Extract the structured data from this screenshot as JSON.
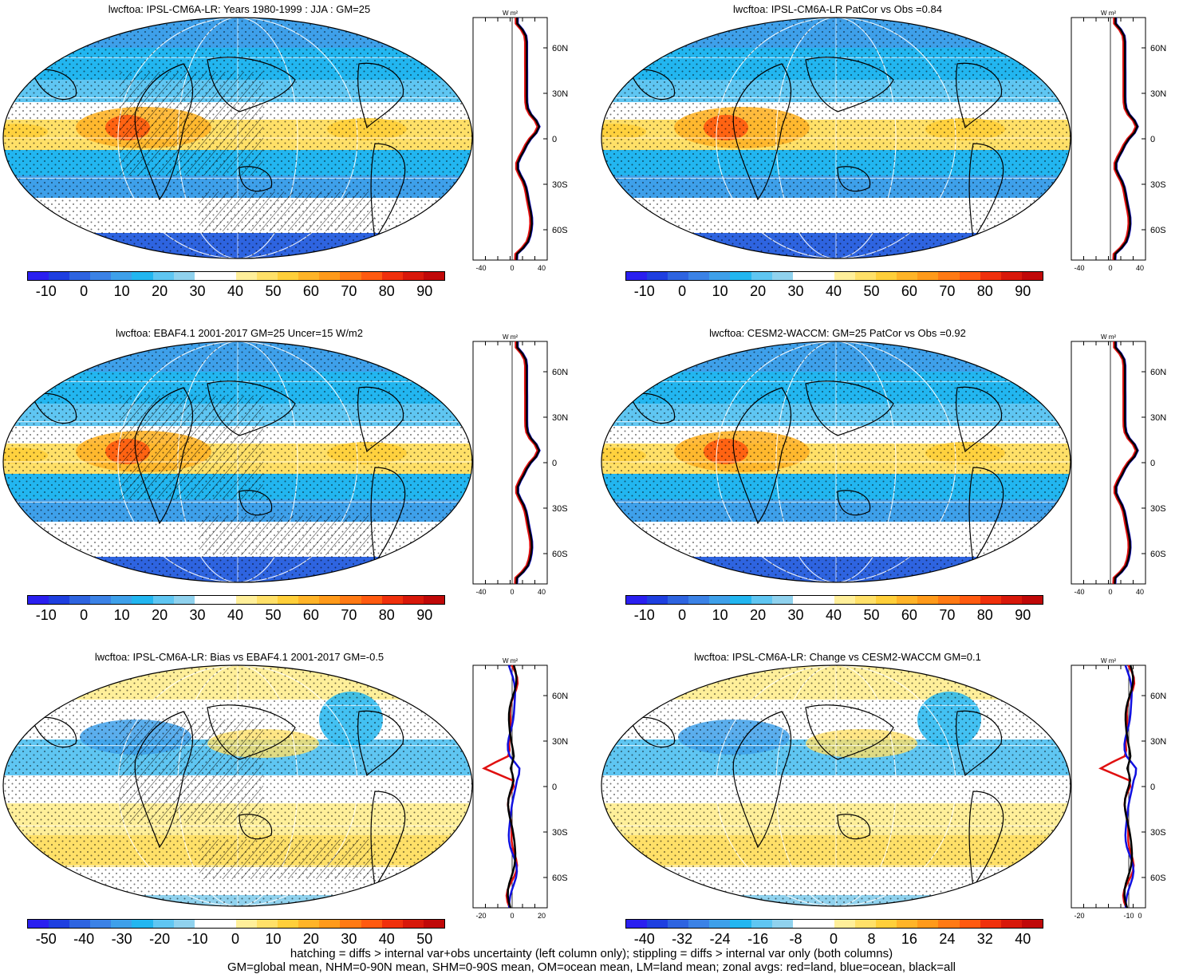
{
  "panels": [
    {
      "title": "lwcftoa: IPSL-CM6A-LR: Years 1980-1999 : JJA : GM=25",
      "kind": "field",
      "hatch": true,
      "colorbar_labels": [
        "-10",
        "0",
        "10",
        "20",
        "30",
        "40",
        "50",
        "60",
        "70",
        "80",
        "90"
      ],
      "zonal_x_ticks": [
        "-40",
        "0",
        "40"
      ],
      "zonal_unit": "W m²",
      "lat_ticks": [
        "60N",
        "30N",
        "0",
        "30S",
        "60S"
      ]
    },
    {
      "title": "lwcftoa: IPSL-CM6A-LR PatCor vs Obs =0.84",
      "kind": "field",
      "hatch": false,
      "colorbar_labels": [
        "-10",
        "0",
        "10",
        "20",
        "30",
        "40",
        "50",
        "60",
        "70",
        "80",
        "90"
      ],
      "zonal_x_ticks": [
        "-40",
        "0",
        "40"
      ],
      "zonal_unit": "W m²",
      "lat_ticks": [
        "60N",
        "30N",
        "0",
        "30S",
        "60S"
      ]
    },
    {
      "title": "lwcftoa: EBAF4.1 2001-2017 GM=25 Uncer=15 W/m2",
      "kind": "field",
      "hatch": true,
      "colorbar_labels": [
        "-10",
        "0",
        "10",
        "20",
        "30",
        "40",
        "50",
        "60",
        "70",
        "80",
        "90"
      ],
      "zonal_x_ticks": [
        "-40",
        "0",
        "40"
      ],
      "zonal_unit": "W m²",
      "lat_ticks": [
        "60N",
        "30N",
        "0",
        "30S",
        "60S"
      ]
    },
    {
      "title": "lwcftoa: CESM2-WACCM: GM=25 PatCor vs Obs =0.92",
      "kind": "field",
      "hatch": false,
      "colorbar_labels": [
        "-10",
        "0",
        "10",
        "20",
        "30",
        "40",
        "50",
        "60",
        "70",
        "80",
        "90"
      ],
      "zonal_x_ticks": [
        "-40",
        "0",
        "40"
      ],
      "zonal_unit": "W m²",
      "lat_ticks": [
        "60N",
        "30N",
        "0",
        "30S",
        "60S"
      ]
    },
    {
      "title": "lwcftoa: IPSL-CM6A-LR: Bias vs EBAF4.1 2001-2017 GM=-0.5",
      "kind": "diff",
      "hatch": true,
      "colorbar_labels": [
        "-50",
        "-40",
        "-30",
        "-20",
        "-10",
        "0",
        "10",
        "20",
        "30",
        "40",
        "50"
      ],
      "zonal_x_ticks": [
        "-20",
        "0",
        "20"
      ],
      "zonal_unit": "W m²",
      "lat_ticks": [
        "60N",
        "30N",
        "0",
        "30S",
        "60S"
      ]
    },
    {
      "title": "lwcftoa: IPSL-CM6A-LR: Change vs CESM2-WACCM GM=0.1",
      "kind": "diff",
      "hatch": false,
      "colorbar_labels": [
        "-40",
        "-32",
        "-24",
        "-16",
        "-8",
        "0",
        "8",
        "16",
        "24",
        "32",
        "40"
      ],
      "zonal_x_ticks": [
        "-20",
        "-10",
        "0"
      ],
      "zonal_unit": "W m²",
      "lat_ticks": [
        "60N",
        "30N",
        "0",
        "30S",
        "60S"
      ]
    }
  ],
  "colors": {
    "palette": [
      "#2a1ff0",
      "#1e3fe0",
      "#2e64e0",
      "#3b82e6",
      "#3ea0ea",
      "#22b6f0",
      "#5fc6f2",
      "#90d2ee",
      "#ffffff",
      "#ffffff",
      "#ffef9a",
      "#ffe068",
      "#ffcf3a",
      "#ffb428",
      "#ff9a1a",
      "#ff7a14",
      "#ff5a10",
      "#f0300c",
      "#d8180a",
      "#c00808"
    ]
  },
  "footer": {
    "line1": "hatching = diffs > internal var+obs uncertainty (left column only); stippling = diffs > internal var only (both columns)",
    "line2": "GM=global mean, NHM=0-90N mean, SHM=0-90S mean, OM=ocean mean, LM=land mean; zonal avgs: red=land, blue=ocean, black=all"
  }
}
